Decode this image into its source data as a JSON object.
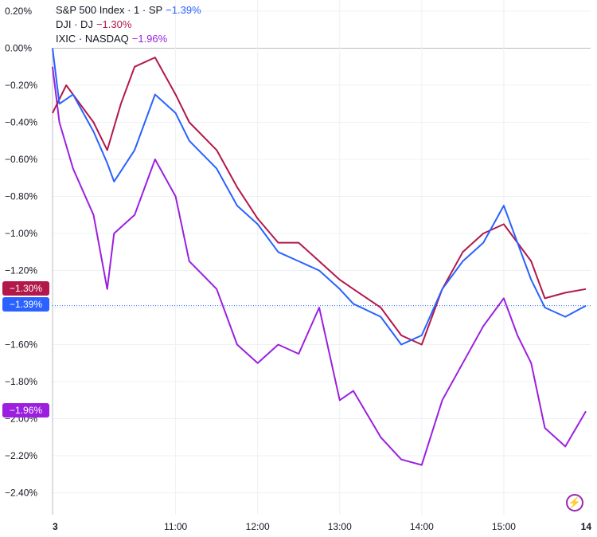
{
  "legend": [
    {
      "name": "S&P 500 Index · 1 · SP",
      "value": "−1.39%",
      "color": "#2962ff"
    },
    {
      "name": "DJI · DJ",
      "value": "−1.30%",
      "color": "#b2184a"
    },
    {
      "name": "IXIC · NASDAQ",
      "value": "−1.96%",
      "color": "#9c1fe0"
    }
  ],
  "tags": {
    "dji": "−1.30%",
    "spx": "−1.39%",
    "ixic": "−1.96%"
  },
  "colors": {
    "spx": "#2962ff",
    "dji": "#b2184a",
    "ixic": "#9c1fe0",
    "grid": "#eef0f3",
    "zero": "#b8bcc4",
    "text": "#131722"
  },
  "icons": {
    "logo": "lightning-bolt-icon"
  },
  "chart_data": {
    "type": "line",
    "y_unit": "%",
    "yticks": [
      "0.20%",
      "0.00%",
      "−0.20%",
      "−0.40%",
      "−0.60%",
      "−0.80%",
      "−1.00%",
      "−1.20%",
      "−1.40%",
      "−1.60%",
      "−1.80%",
      "−2.00%",
      "−2.20%",
      "−2.40%"
    ],
    "ytick_values": [
      0.2,
      0.0,
      -0.2,
      -0.4,
      -0.6,
      -0.8,
      -1.0,
      -1.2,
      -1.4,
      -1.6,
      -1.8,
      -2.0,
      -2.2,
      -2.4
    ],
    "xticks": [
      "3",
      "11:00",
      "12:00",
      "13:00",
      "14:00",
      "15:00",
      "14"
    ],
    "xtick_values": [
      "09:30",
      "11:00",
      "12:00",
      "13:00",
      "14:00",
      "15:00",
      "16:00"
    ],
    "ylim": [
      -2.5,
      0.28
    ],
    "grid": true,
    "legend_position": "top-left",
    "series": [
      {
        "name": "S&P 500 Index · 1 · SP",
        "x": [
          "09:30",
          "09:35",
          "09:45",
          "10:00",
          "10:10",
          "10:15",
          "10:30",
          "10:45",
          "11:00",
          "11:10",
          "11:30",
          "11:45",
          "12:00",
          "12:15",
          "12:30",
          "12:45",
          "13:00",
          "13:10",
          "13:30",
          "13:45",
          "14:00",
          "14:15",
          "14:30",
          "14:45",
          "15:00",
          "15:10",
          "15:20",
          "15:30",
          "15:45",
          "16:00"
        ],
        "y": [
          0.0,
          -0.3,
          -0.25,
          -0.45,
          -0.62,
          -0.72,
          -0.55,
          -0.25,
          -0.35,
          -0.5,
          -0.65,
          -0.85,
          -0.95,
          -1.1,
          -1.15,
          -1.2,
          -1.3,
          -1.38,
          -1.45,
          -1.6,
          -1.55,
          -1.3,
          -1.15,
          -1.05,
          -0.85,
          -1.05,
          -1.25,
          -1.4,
          -1.45,
          -1.39
        ]
      },
      {
        "name": "DJI · DJ",
        "x": [
          "09:30",
          "09:40",
          "09:50",
          "10:00",
          "10:10",
          "10:20",
          "10:30",
          "10:45",
          "11:00",
          "11:10",
          "11:30",
          "11:45",
          "12:00",
          "12:15",
          "12:30",
          "12:45",
          "13:00",
          "13:10",
          "13:30",
          "13:45",
          "14:00",
          "14:15",
          "14:30",
          "14:45",
          "15:00",
          "15:10",
          "15:20",
          "15:30",
          "15:45",
          "16:00"
        ],
        "y": [
          -0.35,
          -0.2,
          -0.3,
          -0.4,
          -0.55,
          -0.3,
          -0.1,
          -0.05,
          -0.25,
          -0.4,
          -0.55,
          -0.75,
          -0.92,
          -1.05,
          -1.05,
          -1.15,
          -1.25,
          -1.3,
          -1.4,
          -1.55,
          -1.6,
          -1.3,
          -1.1,
          -1.0,
          -0.95,
          -1.05,
          -1.15,
          -1.35,
          -1.32,
          -1.3
        ]
      },
      {
        "name": "IXIC · NASDAQ",
        "x": [
          "09:30",
          "09:35",
          "09:45",
          "10:00",
          "10:10",
          "10:15",
          "10:30",
          "10:45",
          "11:00",
          "11:10",
          "11:30",
          "11:45",
          "12:00",
          "12:15",
          "12:30",
          "12:45",
          "13:00",
          "13:10",
          "13:30",
          "13:45",
          "14:00",
          "14:15",
          "14:30",
          "14:45",
          "15:00",
          "15:10",
          "15:20",
          "15:30",
          "15:45",
          "16:00"
        ],
        "y": [
          -0.1,
          -0.4,
          -0.65,
          -0.9,
          -1.3,
          -1.0,
          -0.9,
          -0.6,
          -0.8,
          -1.15,
          -1.3,
          -1.6,
          -1.7,
          -1.6,
          -1.65,
          -1.4,
          -1.9,
          -1.85,
          -2.1,
          -2.22,
          -2.25,
          -1.9,
          -1.7,
          -1.5,
          -1.35,
          -1.55,
          -1.7,
          -2.05,
          -2.15,
          -1.96
        ]
      }
    ]
  }
}
